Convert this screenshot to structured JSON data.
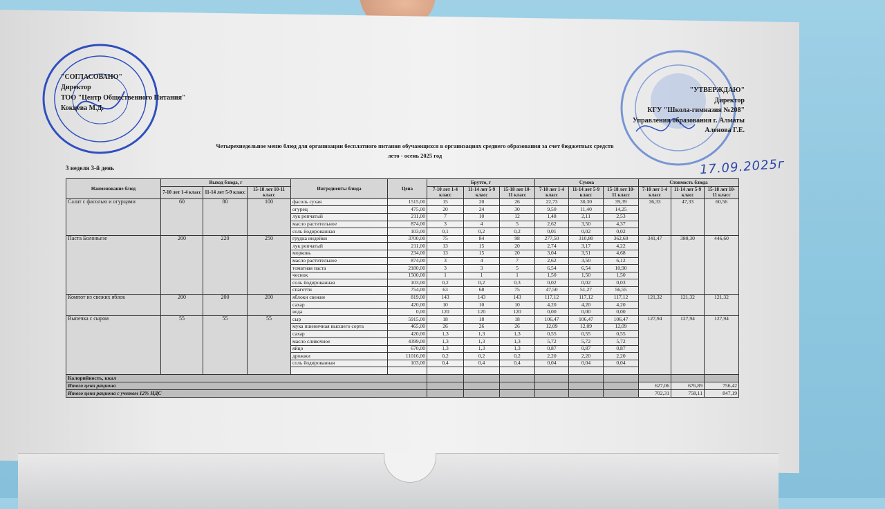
{
  "approval_left": {
    "heading": "\"СОГЛАСОВАНО\"",
    "position": "Директор",
    "organization": "ТОО \"Центр Общественного Питания\"",
    "signatory": "Кокцева М.Д."
  },
  "approval_right": {
    "heading": "\"УТВЕРЖДАЮ\"",
    "position": "Директор",
    "organization": "КГУ  \"Школа-гимназия №208\"",
    "department": "Управления образования г. Алматы",
    "signatory": "Аленова Г.Е."
  },
  "stamps": {
    "left_text": "Қазақстан Республикасы Алматы қаласы Жауапкершілігі шектеулі серіктестігі — Товарищество с ограниченной ответственностью Центр Общественного Питания",
    "right_text": "Алматы қаласы білім басқармасының №208 мектеп-гимназиясы КММ",
    "color": "#2f4fc0"
  },
  "title": "Четырехнедельное меню блюд для организации бесплатного питания обучающихся в организациях среднего образования за счет бюджетных средств",
  "season": "лето - осень 2025 год",
  "day_label": "3 неделя 3-й день",
  "handwritten_date": "17.09.2025г",
  "table": {
    "headers": {
      "dish": "Наименование блюд",
      "yield": "Выход блюда, г",
      "ingredients": "Ингредиенты блюда",
      "price": "Цена",
      "brutto": "Брутто, г",
      "sum": "Сумма",
      "cost": "Стоимость блюда",
      "groups": [
        "7-10 лет 1-4 класс",
        "11-14 лет 5-9 класс",
        "15-18 лет 10-11 класс"
      ]
    },
    "dishes": [
      {
        "name": "Салат с фасолью и огурцами",
        "yield": [
          "60",
          "80",
          "100"
        ],
        "cost": [
          "36,33",
          "47,33",
          "60,56"
        ],
        "ingredients": [
          {
            "name": "фасоль сухая",
            "price": "1515,00",
            "brutto": [
              "15",
              "20",
              "26"
            ],
            "sum": [
              "22,73",
              "30,30",
              "39,39"
            ]
          },
          {
            "name": "огурец",
            "price": "475,00",
            "brutto": [
              "20",
              "24",
              "30"
            ],
            "sum": [
              "9,50",
              "11,40",
              "14,25"
            ]
          },
          {
            "name": "лук репчатый",
            "price": "211,00",
            "brutto": [
              "7",
              "10",
              "12"
            ],
            "sum": [
              "1,48",
              "2,11",
              "2,53"
            ]
          },
          {
            "name": "масло растительное",
            "price": "874,00",
            "brutto": [
              "3",
              "4",
              "5"
            ],
            "sum": [
              "2,62",
              "3,50",
              "4,37"
            ]
          },
          {
            "name": "соль йодированная",
            "price": "103,00",
            "brutto": [
              "0,1",
              "0,2",
              "0,2"
            ],
            "sum": [
              "0,01",
              "0,02",
              "0,02"
            ]
          }
        ]
      },
      {
        "name": "Паста Болоньезе",
        "yield": [
          "200",
          "220",
          "250"
        ],
        "cost": [
          "341,47",
          "380,30",
          "446,60"
        ],
        "ingredients": [
          {
            "name": "грудка индейки",
            "price": "3700,00",
            "brutto": [
              "75",
              "84",
              "98"
            ],
            "sum": [
              "277,50",
              "310,80",
              "362,60"
            ]
          },
          {
            "name": "лук репчатый",
            "price": "211,00",
            "brutto": [
              "13",
              "15",
              "20"
            ],
            "sum": [
              "2,74",
              "3,17",
              "4,22"
            ]
          },
          {
            "name": "морковь",
            "price": "234,00",
            "brutto": [
              "13",
              "15",
              "20"
            ],
            "sum": [
              "3,04",
              "3,51",
              "4,68"
            ]
          },
          {
            "name": "масло растительное",
            "price": "874,00",
            "brutto": [
              "3",
              "4",
              "7"
            ],
            "sum": [
              "2,62",
              "3,50",
              "6,12"
            ]
          },
          {
            "name": "томатная паста",
            "price": "2180,00",
            "brutto": [
              "3",
              "3",
              "5"
            ],
            "sum": [
              "6,54",
              "6,54",
              "10,90"
            ]
          },
          {
            "name": "чеснок",
            "price": "1500,00",
            "brutto": [
              "1",
              "1",
              "1"
            ],
            "sum": [
              "1,50",
              "1,50",
              "1,50"
            ]
          },
          {
            "name": "соль йодированная",
            "price": "103,00",
            "brutto": [
              "0,2",
              "0,2",
              "0,3"
            ],
            "sum": [
              "0,02",
              "0,02",
              "0,03"
            ]
          },
          {
            "name": "спагетти",
            "price": "754,00",
            "brutto": [
              "63",
              "68",
              "75"
            ],
            "sum": [
              "47,50",
              "51,27",
              "56,55"
            ]
          }
        ]
      },
      {
        "name": "Компот из свежих яблок",
        "yield": [
          "200",
          "200",
          "200"
        ],
        "cost": [
          "121,32",
          "121,32",
          "121,32"
        ],
        "ingredients": [
          {
            "name": "яблоки свежие",
            "price": "819,00",
            "brutto": [
              "143",
              "143",
              "143"
            ],
            "sum": [
              "117,12",
              "117,12",
              "117,12"
            ]
          },
          {
            "name": "сахар",
            "price": "420,00",
            "brutto": [
              "10",
              "10",
              "10"
            ],
            "sum": [
              "4,20",
              "4,20",
              "4,20"
            ]
          },
          {
            "name": "вода",
            "price": "0,00",
            "brutto": [
              "120",
              "120",
              "120"
            ],
            "sum": [
              "0,00",
              "0,00",
              "0,00"
            ]
          }
        ]
      },
      {
        "name": "Выпечка с сыром",
        "yield": [
          "55",
          "55",
          "55"
        ],
        "cost": [
          "127,94",
          "127,94",
          "127,94"
        ],
        "ingredients": [
          {
            "name": "сыр",
            "price": "5915,00",
            "brutto": [
              "18",
              "18",
              "18"
            ],
            "sum": [
              "106,47",
              "106,47",
              "106,47"
            ]
          },
          {
            "name": "мука пшеничная высшего сорта",
            "price": "465,00",
            "brutto": [
              "26",
              "26",
              "26"
            ],
            "sum": [
              "12,09",
              "12,09",
              "12,09"
            ]
          },
          {
            "name": "сахар",
            "price": "420,00",
            "brutto": [
              "1,3",
              "1,3",
              "1,3"
            ],
            "sum": [
              "0,55",
              "0,55",
              "0,55"
            ]
          },
          {
            "name": "масло сливочное",
            "price": "4399,00",
            "brutto": [
              "1,3",
              "1,3",
              "1,3"
            ],
            "sum": [
              "5,72",
              "5,72",
              "5,72"
            ]
          },
          {
            "name": "яйцо",
            "price": "670,00",
            "brutto": [
              "1,3",
              "1,3",
              "1,3"
            ],
            "sum": [
              "0,87",
              "0,87",
              "0,87"
            ]
          },
          {
            "name": "дрожжи",
            "price": "11016,00",
            "brutto": [
              "0,2",
              "0,2",
              "0,2"
            ],
            "sum": [
              "2,20",
              "2,20",
              "2,20"
            ]
          },
          {
            "name": "соль йодированная",
            "price": "103,00",
            "brutto": [
              "0,4",
              "0,4",
              "0,4"
            ],
            "sum": [
              "0,04",
              "0,04",
              "0,04"
            ]
          }
        ]
      }
    ],
    "footer": {
      "calories_label": "Калорийность, ккал",
      "total_label": "Итого цена рациона",
      "total": [
        "627,06",
        "676,89",
        "756,42"
      ],
      "total_vat_label": "Итого цена рациона с учетом 12% НДС",
      "total_vat": [
        "702,31",
        "758,11",
        "847,19"
      ]
    }
  }
}
